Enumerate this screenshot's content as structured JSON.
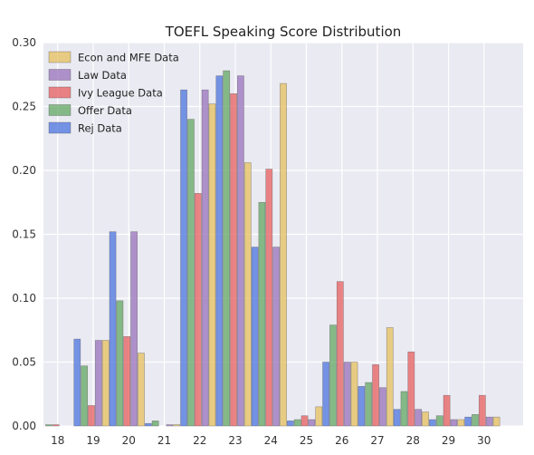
{
  "chart_data": {
    "type": "bar",
    "title": "TOEFL Speaking Score Distribution",
    "xlabel": "",
    "ylabel": "",
    "x": [
      18,
      19,
      20,
      21,
      22,
      23,
      24,
      25,
      26,
      27,
      28,
      29,
      30
    ],
    "xlim": [
      17.6,
      31.1
    ],
    "ylim": [
      0,
      0.3
    ],
    "yticks": [
      0.0,
      0.05,
      0.1,
      0.15,
      0.2,
      0.25,
      0.3
    ],
    "ytick_labels": [
      "0.00",
      "0.05",
      "0.10",
      "0.15",
      "0.20",
      "0.25",
      "0.30"
    ],
    "grid": true,
    "legend_position": "top-left",
    "plot_background": "#eaeaf2",
    "series": [
      {
        "name": "Econ and MFE Data",
        "color": "#e8c46a",
        "values": [
          0.0,
          0.067,
          0.057,
          0.001,
          0.252,
          0.206,
          0.268,
          0.015,
          0.05,
          0.077,
          0.011,
          0.005,
          0.007
        ]
      },
      {
        "name": "Law Data",
        "color": "#a07cc0",
        "values": [
          0.0,
          0.067,
          0.152,
          0.001,
          0.263,
          0.274,
          0.14,
          0.005,
          0.05,
          0.03,
          0.013,
          0.005,
          0.007
        ]
      },
      {
        "name": "Ivy League Data",
        "color": "#e86a6a",
        "values": [
          0.001,
          0.016,
          0.07,
          0.0,
          0.182,
          0.26,
          0.201,
          0.008,
          0.113,
          0.048,
          0.058,
          0.024,
          0.024
        ]
      },
      {
        "name": "Offer Data",
        "color": "#6fad6f",
        "values": [
          0.001,
          0.047,
          0.098,
          0.004,
          0.24,
          0.278,
          0.175,
          0.005,
          0.079,
          0.034,
          0.027,
          0.008,
          0.009
        ]
      },
      {
        "name": "Rej Data",
        "color": "#5a7fe0",
        "values": [
          0.0,
          0.068,
          0.152,
          0.002,
          0.263,
          0.274,
          0.14,
          0.004,
          0.05,
          0.031,
          0.013,
          0.005,
          0.007
        ]
      }
    ]
  }
}
